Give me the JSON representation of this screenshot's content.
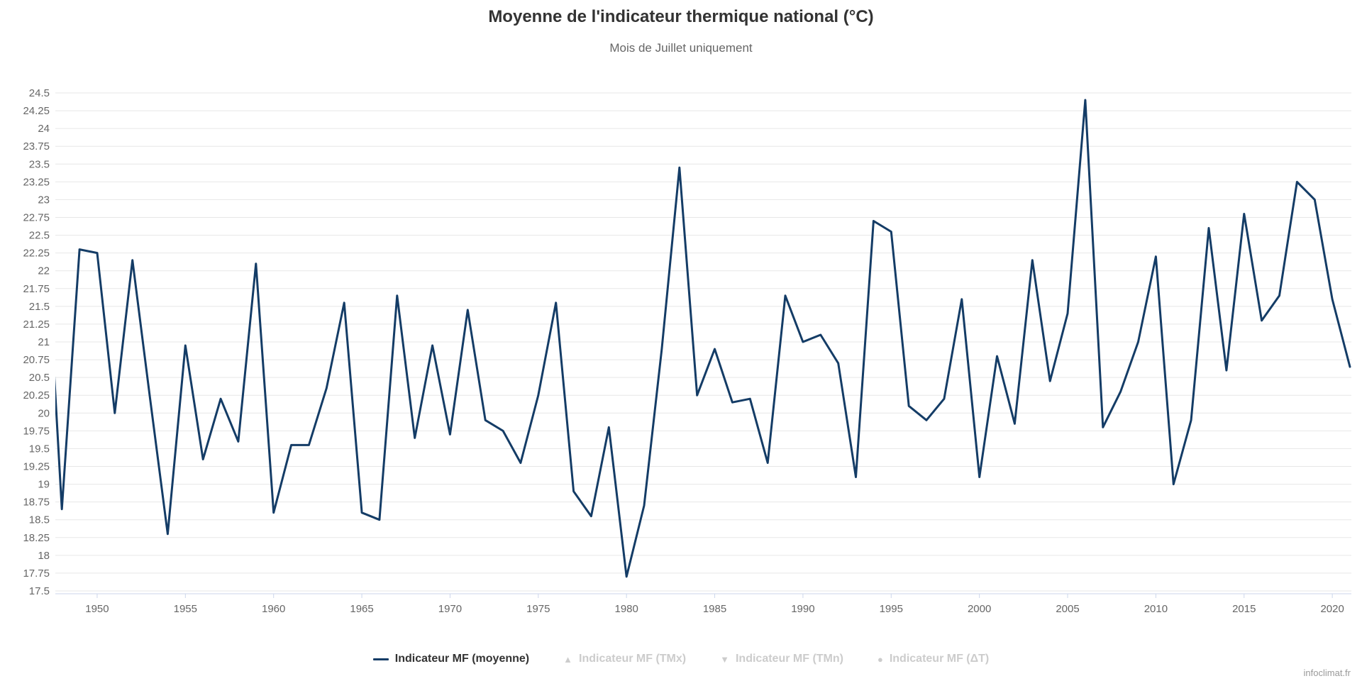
{
  "chart_data": {
    "type": "line",
    "title": "Moyenne de l'indicateur thermique national (°C)",
    "subtitle": "Mois de Juillet uniquement",
    "xlabel": "",
    "ylabel": "",
    "grid": "horizontal-only",
    "legend_position": "bottom-center",
    "xlim": [
      1947.63,
      2021.08
    ],
    "ylim": [
      17.5,
      24.5
    ],
    "ytick_step": 0.25,
    "xticks": [
      "1950",
      "1955",
      "1960",
      "1965",
      "1970",
      "1975",
      "1980",
      "1985",
      "1990",
      "1995",
      "2000",
      "2005",
      "2010",
      "2015",
      "2020"
    ],
    "yticks": [
      "17.5",
      "17.75",
      "18",
      "18.25",
      "18.5",
      "18.75",
      "19",
      "19.25",
      "19.5",
      "19.75",
      "20",
      "20.25",
      "20.5",
      "20.75",
      "21",
      "21.25",
      "21.5",
      "21.75",
      "22",
      "22.25",
      "22.5",
      "22.75",
      "23",
      "23.25",
      "23.5",
      "23.75",
      "24",
      "24.25",
      "24.5"
    ],
    "series": [
      {
        "name": "Indicateur MF (moyenne)",
        "color": "#143c66",
        "x": [
          1947,
          1948,
          1949,
          1950,
          1951,
          1952,
          1953,
          1954,
          1955,
          1956,
          1957,
          1958,
          1959,
          1960,
          1961,
          1962,
          1963,
          1964,
          1965,
          1966,
          1967,
          1968,
          1969,
          1970,
          1971,
          1972,
          1973,
          1974,
          1975,
          1976,
          1977,
          1978,
          1979,
          1980,
          1981,
          1982,
          1983,
          1984,
          1985,
          1986,
          1987,
          1988,
          1989,
          1990,
          1991,
          1992,
          1993,
          1994,
          1995,
          1996,
          1997,
          1998,
          1999,
          2000,
          2001,
          2002,
          2003,
          2004,
          2005,
          2006,
          2007,
          2008,
          2009,
          2010,
          2011,
          2012,
          2013,
          2014,
          2015,
          2016,
          2017,
          2018,
          2019,
          2020,
          2021
        ],
        "values": [
          23.0,
          18.65,
          22.3,
          22.25,
          20.0,
          22.15,
          20.2,
          18.3,
          20.95,
          19.35,
          20.2,
          19.6,
          22.1,
          18.6,
          19.55,
          19.55,
          20.35,
          21.55,
          18.6,
          18.5,
          21.65,
          19.65,
          20.95,
          19.7,
          21.45,
          19.9,
          19.75,
          19.3,
          20.25,
          21.55,
          18.9,
          18.55,
          19.8,
          17.7,
          18.7,
          20.9,
          23.45,
          20.25,
          20.9,
          20.15,
          20.2,
          19.3,
          21.65,
          21.0,
          21.1,
          20.7,
          19.1,
          22.7,
          22.55,
          20.1,
          19.9,
          20.2,
          21.6,
          19.1,
          20.8,
          19.85,
          22.15,
          20.45,
          21.4,
          24.4,
          19.8,
          20.3,
          21.0,
          22.2,
          19.0,
          19.9,
          22.6,
          20.6,
          22.8,
          21.3,
          21.65,
          23.25,
          23.0,
          21.6,
          20.65
        ]
      }
    ]
  },
  "legend": {
    "items": [
      {
        "name": "legend-item-moyenne",
        "label": "Indicateur MF (moyenne)",
        "marker": "line",
        "enabled": true,
        "color": "#143c66",
        "text_color": "#333333"
      },
      {
        "name": "legend-item-tmx",
        "label": "Indicateur MF (TMx)",
        "marker": "triangle-up",
        "enabled": false,
        "color": "#cccccc",
        "text_color": "#cccccc"
      },
      {
        "name": "legend-item-tmn",
        "label": "Indicateur MF (TMn)",
        "marker": "triangle-down",
        "enabled": false,
        "color": "#cccccc",
        "text_color": "#cccccc"
      },
      {
        "name": "legend-item-dt",
        "label": "Indicateur MF (ΔT)",
        "marker": "circle",
        "enabled": false,
        "color": "#cccccc",
        "text_color": "#cccccc"
      }
    ],
    "marker_glyphs": {
      "triangle-up": "▲",
      "triangle-down": "▼",
      "circle": "●"
    }
  },
  "credits": {
    "label": "infoclimat.fr"
  },
  "colors": {
    "background": "#ffffff",
    "series_line": "#143c66",
    "gridline": "#e7e7e7",
    "axis_line": "#ccd6eb",
    "tick_label": "#666666",
    "title_text": "#333333",
    "subtitle_text": "#666666",
    "legend_disabled": "#cccccc",
    "credits_text": "#999999"
  }
}
